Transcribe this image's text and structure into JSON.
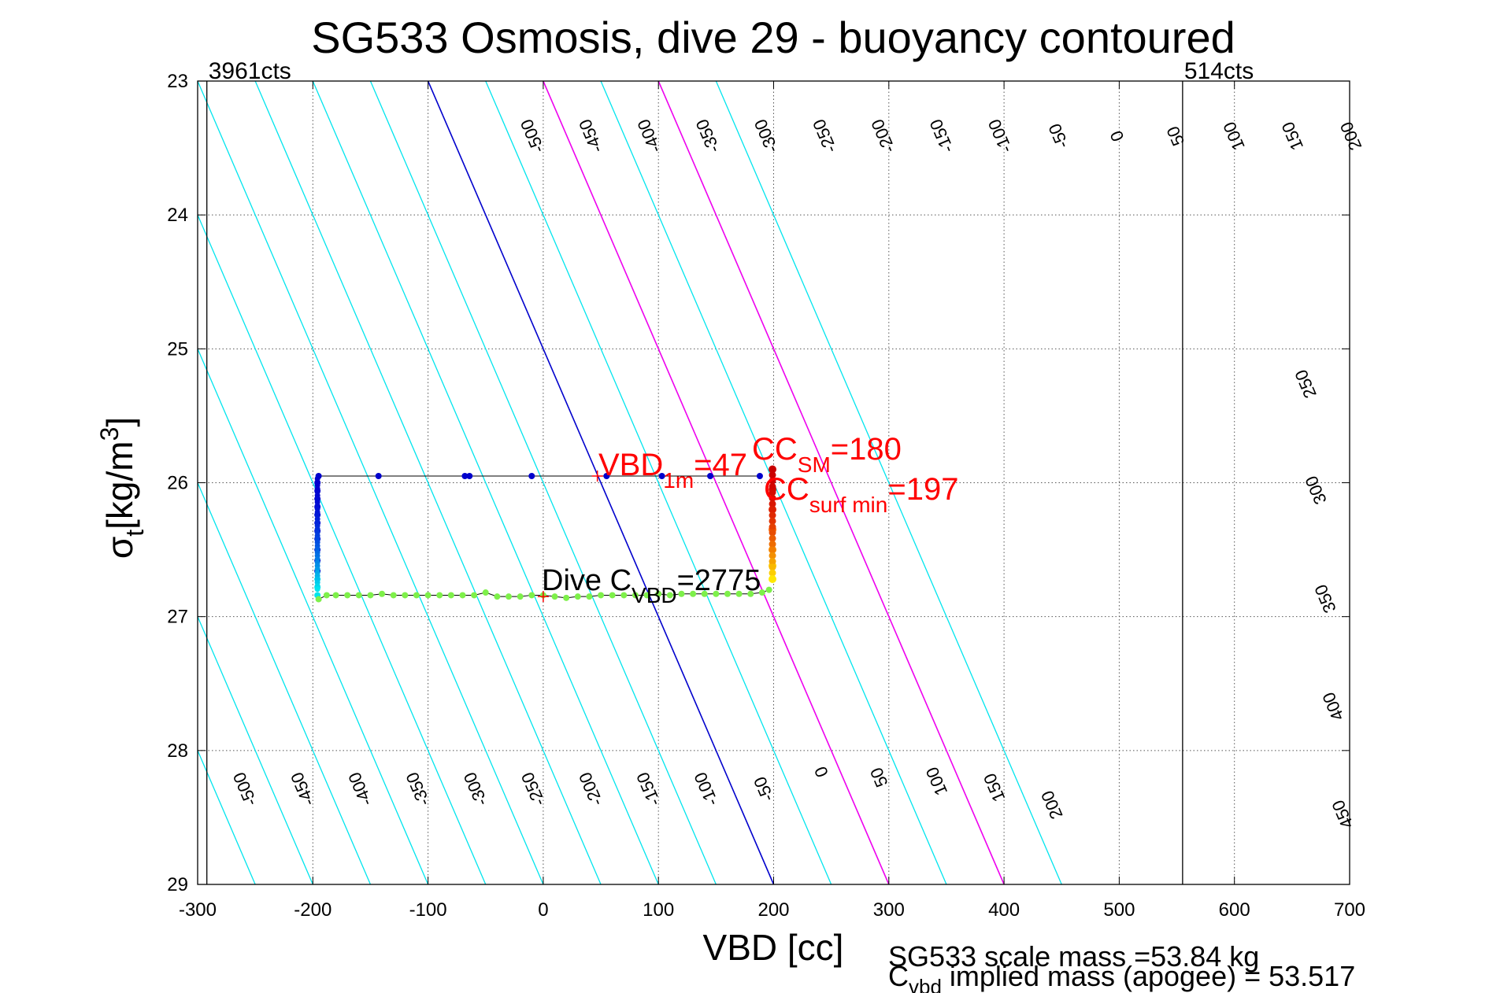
{
  "chart_data": {
    "type": "scatter",
    "title": "SG533 Osmosis, dive 29 - buoyancy contoured",
    "xlabel": "VBD [cc]",
    "ylabel": "σ",
    "ylabel_sub": "t",
    "ylabel_unit": "[kg/m",
    "ylabel_sup": "3",
    "ylabel_close": "]",
    "xlim": [
      -300,
      700
    ],
    "ylim": [
      23,
      29
    ],
    "y_reversed": true,
    "grid": true,
    "x_ticks": [
      -300,
      -200,
      -100,
      0,
      100,
      200,
      300,
      400,
      500,
      600,
      700
    ],
    "x_tick_labels": [
      "-300",
      "-200",
      "-100",
      "0",
      "100",
      "200",
      "300",
      "400",
      "500",
      "600",
      "700"
    ],
    "y_ticks": [
      23,
      24,
      25,
      26,
      27,
      28,
      29
    ],
    "y_tick_labels": [
      "23",
      "24",
      "25",
      "26",
      "27",
      "28",
      "29"
    ],
    "vbd_limit_left": {
      "x": -292,
      "label": "3961cts"
    },
    "vbd_limit_right": {
      "x": 555,
      "label": "514cts"
    },
    "buoyancy_contours": {
      "slope_cc_per_kgm3": 50,
      "x_at_sigma29": [
        -500,
        -450,
        -400,
        -350,
        -300,
        -250,
        -200,
        -150,
        -100,
        -50,
        0,
        50,
        100,
        150,
        200,
        250,
        300,
        350,
        400,
        450
      ],
      "zero_contour_x_at_sigma29": 200,
      "magenta_contours_x_at_sigma29": [
        300,
        400
      ],
      "top_labels": [
        "-500",
        "-450",
        "-400",
        "-350",
        "-300",
        "-250",
        "-200",
        "-150",
        "-100",
        "-50",
        "0",
        "50",
        "100",
        "150",
        "200"
      ],
      "bottom_labels": [
        "-500",
        "-450",
        "-400",
        "-350",
        "-300",
        "-250",
        "-200",
        "-150",
        "-100",
        "-50",
        "0",
        "50",
        "100",
        "150",
        "200"
      ],
      "right_labels": [
        "250",
        "300",
        "350",
        "400",
        "450"
      ],
      "colors": {
        "default": "#00e5ee",
        "zero": "#0000cc",
        "magenta": "#ee00ee"
      }
    },
    "series": [
      {
        "name": "descent",
        "color": "#0000cc",
        "x": [
          188,
          145,
          103,
          55,
          -10,
          -64,
          -68,
          -143,
          -195,
          -196,
          -196,
          -196,
          -196,
          -196,
          -196,
          -196,
          -196,
          -196,
          -196,
          -196
        ],
        "y": [
          25.95,
          25.95,
          25.95,
          25.95,
          25.95,
          25.95,
          25.95,
          25.95,
          25.95,
          26.0,
          26.06,
          26.12,
          26.18,
          26.24,
          26.3,
          26.36,
          26.42,
          26.5,
          26.58,
          26.66
        ]
      },
      {
        "name": "apogee",
        "color": "#00e5ee",
        "x": [
          -196,
          -196,
          -196
        ],
        "y": [
          26.72,
          26.78,
          26.84
        ]
      },
      {
        "name": "climb",
        "color": "#7ef04a",
        "x": [
          -195,
          -188,
          -180,
          -170,
          -160,
          -150,
          -140,
          -130,
          -120,
          -110,
          -100,
          -90,
          -80,
          -70,
          -60,
          -50,
          -40,
          -30,
          -20,
          -10,
          0,
          10,
          20,
          30,
          40,
          50,
          60,
          70,
          80,
          90,
          100,
          110,
          120,
          130,
          140,
          150,
          160,
          170,
          180,
          190,
          196
        ],
        "y": [
          26.87,
          26.84,
          26.84,
          26.84,
          26.84,
          26.84,
          26.83,
          26.84,
          26.84,
          26.84,
          26.84,
          26.84,
          26.84,
          26.84,
          26.84,
          26.82,
          26.85,
          26.85,
          26.85,
          26.84,
          26.84,
          26.85,
          26.86,
          26.85,
          26.85,
          26.84,
          26.84,
          26.84,
          26.84,
          26.84,
          26.83,
          26.84,
          26.83,
          26.83,
          26.83,
          26.83,
          26.83,
          26.83,
          26.83,
          26.82,
          26.8
        ]
      },
      {
        "name": "surface",
        "colors": [
          "#cc0000",
          "#dd1100",
          "#ee3300",
          "#ff6600",
          "#ff9900",
          "#ffcc00",
          "#ffee00"
        ],
        "x": [
          199,
          199,
          199,
          199,
          199,
          199,
          199
        ],
        "y": [
          25.9,
          26.05,
          26.2,
          26.35,
          26.5,
          26.62,
          26.72
        ]
      }
    ],
    "annotations": [
      {
        "name": "vbd-1m",
        "text": "VBD",
        "sub": "1m",
        "tail": "=47",
        "x": 47,
        "y": 25.95,
        "color": "#ff0000"
      },
      {
        "name": "cc-sm",
        "text": "CC",
        "sub": "SM",
        "tail": "=180",
        "x": 180,
        "y": 25.95,
        "color": "#ff0000"
      },
      {
        "name": "cc-surf-min",
        "text": "CC",
        "sub": "surf min",
        "tail": "=197",
        "x": 197,
        "y": 25.95,
        "color": "#ff0000"
      },
      {
        "name": "dive-c-vbd",
        "text": "Dive C",
        "sub": "VBD",
        "tail": "=2775",
        "x": 0,
        "y": 26.85,
        "color": "#000000"
      }
    ],
    "footer": {
      "line1": "SG533 scale mass =53.84 kg",
      "line2_main": "C",
      "line2_sub": "vbd",
      "line2_tail": " implied mass (apogee) = 53.517"
    }
  }
}
